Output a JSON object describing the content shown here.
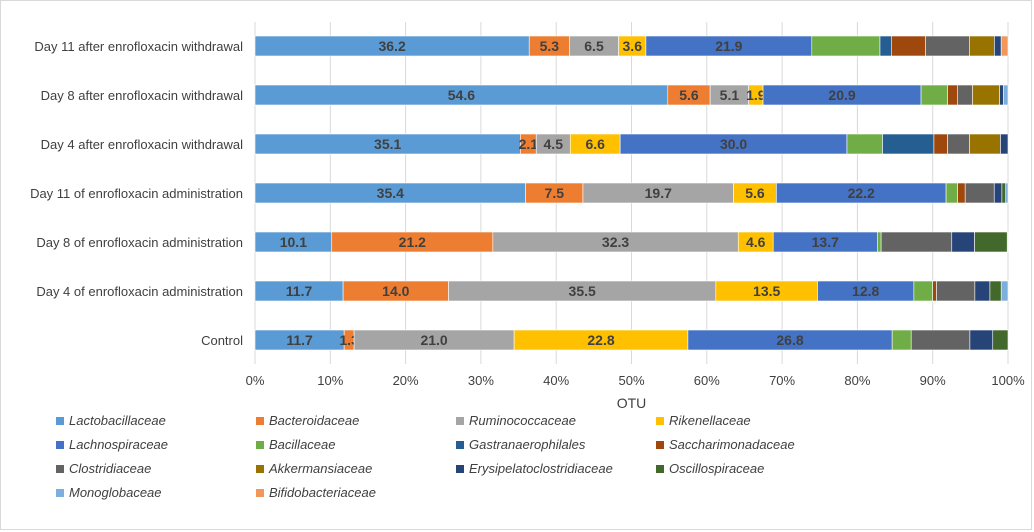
{
  "chart_data": {
    "type": "bar",
    "orientation": "horizontal",
    "stacked": "percent",
    "xlabel": "OTU",
    "ylabel": "",
    "xlim": [
      0,
      100
    ],
    "xticks": [
      "0%",
      "10%",
      "20%",
      "30%",
      "40%",
      "50%",
      "60%",
      "70%",
      "80%",
      "90%",
      "100%"
    ],
    "grid": "vertical",
    "legend_position": "bottom",
    "categories": [
      "Day 11 after enrofloxacin withdrawal",
      "Day 8 after enrofloxacin withdrawal",
      "Day 4 after enrofloxacin withdrawal",
      "Day 11 of enrofloxacin administration",
      "Day 8 of enrofloxacin administration",
      "Day 4 of enrofloxacin administration",
      "Control"
    ],
    "series": [
      {
        "name": "Lactobacillaceae",
        "color": "#5b9bd5",
        "values": [
          36.2,
          54.6,
          35.1,
          35.4,
          10.1,
          11.7,
          11.7
        ],
        "labels": [
          "36.2",
          "54.6",
          "35.1",
          "35.4",
          "10.1",
          "11.7",
          "11.7"
        ]
      },
      {
        "name": "Bacteroidaceae",
        "color": "#ed7d31",
        "values": [
          5.3,
          5.6,
          2.1,
          7.5,
          21.2,
          14.0,
          1.3
        ],
        "labels": [
          "5.3",
          "5.6",
          "2.1",
          "7.5",
          "21.2",
          "14.0",
          "1.3"
        ]
      },
      {
        "name": "Ruminococcaceae",
        "color": "#a5a5a5",
        "values": [
          6.5,
          5.1,
          4.5,
          19.7,
          32.3,
          35.5,
          21.0
        ],
        "labels": [
          "6.5",
          "5.1",
          "4.5",
          "19.7",
          "32.3",
          "35.5",
          "21.0"
        ]
      },
      {
        "name": "Rikenellaceae",
        "color": "#ffc000",
        "values": [
          3.6,
          1.9,
          6.6,
          5.6,
          4.6,
          13.5,
          22.8
        ],
        "labels": [
          "3.6",
          "1.9",
          "6.6",
          "5.6",
          "4.6",
          "13.5",
          "22.8"
        ]
      },
      {
        "name": "Lachnospiraceae",
        "color": "#4472c4",
        "values": [
          21.9,
          20.9,
          30.0,
          22.2,
          13.7,
          12.8,
          26.8
        ],
        "labels": [
          "21.9",
          "20.9",
          "30.0",
          "22.2",
          "13.7",
          "12.8",
          "26.8"
        ]
      },
      {
        "name": "Bacillaceae",
        "color": "#70ad47",
        "values": [
          9.0,
          3.5,
          4.7,
          1.5,
          0.5,
          2.5,
          2.5
        ]
      },
      {
        "name": "Gastranaerophilales",
        "color": "#255e91",
        "values": [
          1.5,
          0,
          6.8,
          0,
          0,
          0,
          0
        ]
      },
      {
        "name": "Saccharimonadaceae",
        "color": "#9e480e",
        "values": [
          4.5,
          1.3,
          1.8,
          1.0,
          0,
          0.5,
          0
        ]
      },
      {
        "name": "Clostridiaceae",
        "color": "#636363",
        "values": [
          5.8,
          2.0,
          2.9,
          3.8,
          9.3,
          5.1,
          7.7
        ]
      },
      {
        "name": "Akkermansiaceae",
        "color": "#997300",
        "values": [
          3.3,
          3.6,
          4.1,
          0,
          0,
          0,
          0
        ]
      },
      {
        "name": "Erysipelatoclostridiaceae",
        "color": "#264478",
        "values": [
          0.9,
          0.5,
          1.0,
          1.0,
          3.0,
          2.0,
          3.0
        ]
      },
      {
        "name": "Oscillospiraceae",
        "color": "#43682b",
        "values": [
          0,
          0,
          0,
          0.5,
          4.3,
          1.5,
          2.0
        ]
      },
      {
        "name": "Monoglobaceae",
        "color": "#7cafdd",
        "values": [
          0,
          0.6,
          0,
          0.3,
          0.1,
          0.9,
          0
        ]
      },
      {
        "name": "Bifidobacteriaceae",
        "color": "#f1975a",
        "values": [
          0.9,
          0,
          0,
          0,
          0,
          0,
          0
        ]
      }
    ]
  }
}
